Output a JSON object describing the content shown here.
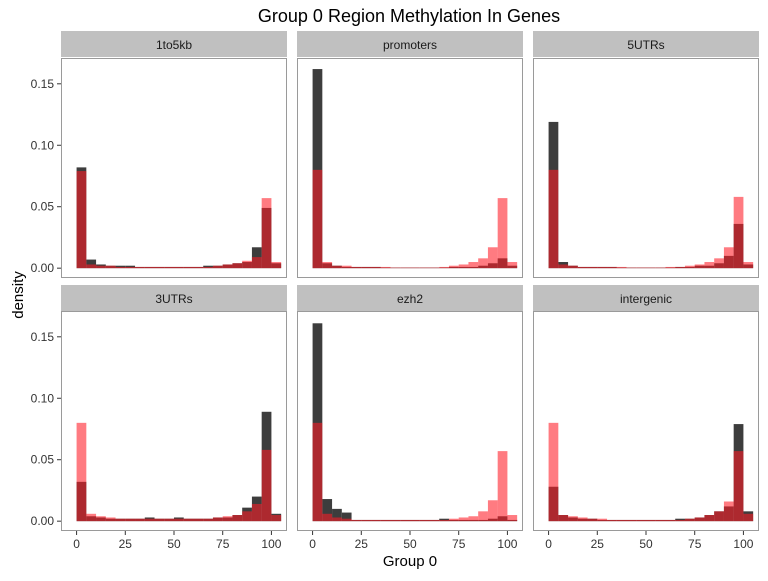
{
  "chart_data": {
    "type": "bar",
    "title": "Group 0 Region Methylation In Genes",
    "xlabel": "Group 0",
    "ylabel": "density",
    "xlim": [
      -8,
      108
    ],
    "ylim": [
      -0.008,
      0.171
    ],
    "x_ticks": [
      0,
      25,
      50,
      75,
      100
    ],
    "x_tick_labels": [
      "0",
      "25",
      "50",
      "75",
      "100"
    ],
    "y_ticks": [
      0,
      0.05,
      0.1,
      0.15
    ],
    "y_tick_labels": [
      "0.00",
      "0.05",
      "0.10",
      "0.15"
    ],
    "bin_width": 5,
    "bin_centers": [
      2.5,
      7.5,
      12.5,
      17.5,
      22.5,
      27.5,
      32.5,
      37.5,
      42.5,
      47.5,
      52.5,
      57.5,
      62.5,
      67.5,
      72.5,
      77.5,
      82.5,
      87.5,
      92.5,
      97.5,
      102.5
    ],
    "grid": false,
    "layout": "facets 3 columns x 2 rows",
    "colors": {
      "dark_series": "#333333",
      "red_series": "#ff6a6e",
      "overlap": "#98181d",
      "strip_fill": "#c0c0c0",
      "panel_border": "#9a9a9a",
      "tick": "#333333"
    },
    "panels": [
      {
        "name": "1to5kb",
        "dark": [
          0.082,
          0.007,
          0.003,
          0.002,
          0.002,
          0.002,
          0.001,
          0.001,
          0.001,
          0.001,
          0.001,
          0.001,
          0.001,
          0.002,
          0.002,
          0.003,
          0.004,
          0.005,
          0.017,
          0.049,
          0.004
        ],
        "red": [
          0.079,
          0.003,
          0.002,
          0.002,
          0.001,
          0.001,
          0.001,
          0.001,
          0.001,
          0.001,
          0.001,
          0.001,
          0.001,
          0.001,
          0.002,
          0.003,
          0.004,
          0.006,
          0.009,
          0.057,
          0.005
        ]
      },
      {
        "name": "promoters",
        "dark": [
          0.162,
          0.004,
          0.002,
          0.001,
          0.001,
          0.001,
          0.001,
          0.0005,
          0.0005,
          0.0005,
          0.0005,
          0.0005,
          0.0005,
          0.0005,
          0.001,
          0.001,
          0.001,
          0.002,
          0.004,
          0.008,
          0.002
        ],
        "red": [
          0.08,
          0.005,
          0.002,
          0.002,
          0.001,
          0.001,
          0.001,
          0.001,
          0.0005,
          0.0005,
          0.0005,
          0.0005,
          0.0005,
          0.001,
          0.002,
          0.003,
          0.005,
          0.008,
          0.017,
          0.057,
          0.005
        ]
      },
      {
        "name": "5UTRs",
        "dark": [
          0.119,
          0.005,
          0.002,
          0.001,
          0.001,
          0.001,
          0.001,
          0.0005,
          0.0005,
          0.0005,
          0.0005,
          0.0005,
          0.0005,
          0.001,
          0.001,
          0.002,
          0.002,
          0.004,
          0.01,
          0.036,
          0.003
        ],
        "red": [
          0.08,
          0.003,
          0.002,
          0.001,
          0.001,
          0.001,
          0.001,
          0.001,
          0.0005,
          0.0005,
          0.0005,
          0.0005,
          0.001,
          0.001,
          0.002,
          0.003,
          0.005,
          0.008,
          0.017,
          0.058,
          0.005
        ]
      },
      {
        "name": "3UTRs",
        "dark": [
          0.032,
          0.004,
          0.003,
          0.002,
          0.002,
          0.002,
          0.002,
          0.003,
          0.002,
          0.002,
          0.003,
          0.002,
          0.002,
          0.002,
          0.003,
          0.003,
          0.005,
          0.011,
          0.02,
          0.089,
          0.006
        ],
        "red": [
          0.08,
          0.006,
          0.004,
          0.003,
          0.002,
          0.002,
          0.002,
          0.002,
          0.002,
          0.002,
          0.002,
          0.002,
          0.002,
          0.002,
          0.003,
          0.004,
          0.005,
          0.008,
          0.014,
          0.058,
          0.005
        ]
      },
      {
        "name": "ezh2",
        "dark": [
          0.161,
          0.018,
          0.01,
          0.007,
          0.001,
          0.001,
          0.001,
          0.001,
          0.001,
          0.001,
          0.001,
          0.001,
          0.001,
          0.002,
          0.001,
          0.001,
          0.001,
          0.001,
          0.002,
          0.004,
          0.001
        ],
        "red": [
          0.08,
          0.006,
          0.003,
          0.002,
          0.001,
          0.001,
          0.001,
          0.001,
          0.001,
          0.001,
          0.001,
          0.001,
          0.001,
          0.001,
          0.002,
          0.003,
          0.004,
          0.008,
          0.017,
          0.057,
          0.005
        ]
      },
      {
        "name": "intergenic",
        "dark": [
          0.028,
          0.005,
          0.003,
          0.002,
          0.002,
          0.001,
          0.001,
          0.001,
          0.001,
          0.001,
          0.001,
          0.001,
          0.001,
          0.002,
          0.002,
          0.003,
          0.005,
          0.008,
          0.012,
          0.079,
          0.008
        ],
        "red": [
          0.08,
          0.005,
          0.004,
          0.003,
          0.002,
          0.002,
          0.001,
          0.001,
          0.001,
          0.001,
          0.001,
          0.001,
          0.001,
          0.001,
          0.002,
          0.003,
          0.005,
          0.008,
          0.016,
          0.057,
          0.006
        ]
      }
    ]
  }
}
